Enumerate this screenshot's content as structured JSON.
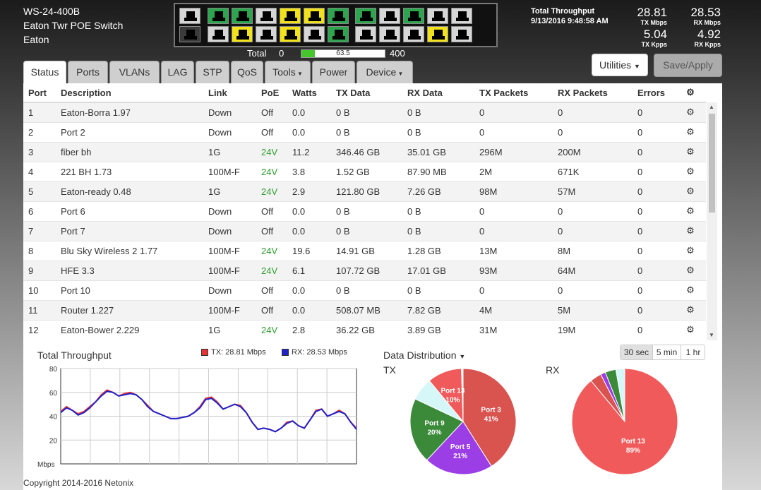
{
  "device": {
    "line1": "WS-24-400B",
    "line2": "Eaton Twr POE Switch",
    "line3": "Eaton"
  },
  "power": {
    "total_label": "Total",
    "min": "0 W",
    "current": "63.5",
    "current_fraction": 0.159,
    "max": "400 W"
  },
  "throughput": {
    "label": "Total Throughput",
    "datetime": "9/13/2016 9:48:58 AM",
    "tx_mbps": "28.81",
    "tx_mbps_label": "TX Mbps",
    "rx_mbps": "28.53",
    "rx_mbps_label": "RX Mbps",
    "tx_kpps": "5.04",
    "tx_kpps_label": "TX Kpps",
    "rx_kpps": "4.92",
    "rx_kpps_label": "RX Kpps"
  },
  "ports_panel": {
    "top": [
      "gray",
      "green",
      "green",
      "gray",
      "yellow",
      "yellow",
      "green",
      "green",
      "gray",
      "green",
      "gray",
      "gray"
    ],
    "bottom": [
      "dark",
      "gray",
      "yellow",
      "gray",
      "yellow",
      "gray",
      "green",
      "gray",
      "gray",
      "gray",
      "yellow",
      "gray"
    ]
  },
  "buttons": {
    "utilities": "Utilities",
    "save": "Save/Apply"
  },
  "tabs": [
    {
      "label": "Status",
      "active": true
    },
    {
      "label": "Ports"
    },
    {
      "label": "VLANs"
    },
    {
      "label": "LAG"
    },
    {
      "label": "STP"
    },
    {
      "label": "QoS"
    },
    {
      "label": "Tools",
      "dropdown": true
    },
    {
      "label": "Power"
    },
    {
      "label": "Device",
      "dropdown": true
    }
  ],
  "table": {
    "headers": [
      "Port",
      "Description",
      "Link",
      "PoE",
      "Watts",
      "TX Data",
      "RX Data",
      "TX Packets",
      "RX Packets",
      "Errors"
    ],
    "rows": [
      [
        "1",
        "Eaton-Borra 1.97",
        "Down",
        "Off",
        "0.0",
        "0 B",
        "0 B",
        "0",
        "0",
        "0"
      ],
      [
        "2",
        "Port 2",
        "Down",
        "Off",
        "0.0",
        "0 B",
        "0 B",
        "0",
        "0",
        "0"
      ],
      [
        "3",
        "fiber bh",
        "1G",
        "24V",
        "11.2",
        "346.46 GB",
        "35.01 GB",
        "296M",
        "200M",
        "0"
      ],
      [
        "4",
        "221 BH 1.73",
        "100M-F",
        "24V",
        "3.8",
        "1.52 GB",
        "87.90 MB",
        "2M",
        "671K",
        "0"
      ],
      [
        "5",
        "Eaton-ready 0.48",
        "1G",
        "24V",
        "2.9",
        "121.80 GB",
        "7.26 GB",
        "98M",
        "57M",
        "0"
      ],
      [
        "6",
        "Port 6",
        "Down",
        "Off",
        "0.0",
        "0 B",
        "0 B",
        "0",
        "0",
        "0"
      ],
      [
        "7",
        "Port 7",
        "Down",
        "Off",
        "0.0",
        "0 B",
        "0 B",
        "0",
        "0",
        "0"
      ],
      [
        "8",
        "Blu Sky Wireless 2 1.77",
        "100M-F",
        "24V",
        "19.6",
        "14.91 GB",
        "1.28 GB",
        "13M",
        "8M",
        "0"
      ],
      [
        "9",
        "HFE 3.3",
        "100M-F",
        "24V",
        "6.1",
        "107.72 GB",
        "17.01 GB",
        "93M",
        "64M",
        "0"
      ],
      [
        "10",
        "Port 10",
        "Down",
        "Off",
        "0.0",
        "0 B",
        "0 B",
        "0",
        "0",
        "0"
      ],
      [
        "11",
        "Router 1.227",
        "100M-F",
        "Off",
        "0.0",
        "508.07 MB",
        "7.82 GB",
        "4M",
        "5M",
        "0"
      ],
      [
        "12",
        "Eaton-Bower 2.229",
        "1G",
        "24V",
        "2.8",
        "36.22 GB",
        "3.89 GB",
        "31M",
        "19M",
        "0"
      ]
    ]
  },
  "bottom": {
    "chart_title": "Total Throughput",
    "legend_tx": "TX: 28.81 Mbps",
    "legend_rx": "RX: 28.53 Mbps",
    "dd_title": "Data Distribution",
    "tx_label": "TX",
    "rx_label": "RX",
    "time_buttons": [
      "30 sec",
      "5 min",
      "1 hr"
    ]
  },
  "footer": "Copyright 2014-2016 Netonix",
  "colors": {
    "tx": "#e53333",
    "rx": "#2222cc"
  },
  "chart_data": [
    {
      "type": "line",
      "title": "Total Throughput",
      "ylabel": "Mbps",
      "ylim": [
        0,
        80
      ],
      "yticks": [
        20,
        40,
        60,
        80
      ],
      "grid": true,
      "legend": "top-right",
      "series": [
        {
          "name": "TX: 28.81 Mbps",
          "color": "#e53333",
          "values": [
            44,
            48,
            45,
            42,
            44,
            48,
            52,
            58,
            62,
            60,
            57,
            59,
            60,
            58,
            54,
            49,
            44,
            42,
            40,
            38,
            38,
            39,
            40,
            43,
            48,
            55,
            56,
            52,
            46,
            48,
            50,
            49,
            43,
            35,
            29,
            30,
            29,
            27,
            30,
            35,
            36,
            32,
            30,
            37,
            45,
            46,
            40,
            42,
            45,
            42,
            35,
            30
          ]
        },
        {
          "name": "RX: 28.53 Mbps",
          "color": "#2222cc",
          "values": [
            43,
            47,
            45,
            41,
            43,
            47,
            52,
            57,
            61,
            60,
            57,
            58,
            59,
            58,
            54,
            48,
            44,
            42,
            40,
            38,
            38,
            39,
            40,
            43,
            47,
            54,
            55,
            51,
            46,
            48,
            50,
            48,
            43,
            35,
            29,
            30,
            29,
            27,
            30,
            34,
            36,
            32,
            30,
            37,
            44,
            46,
            40,
            42,
            44,
            42,
            35,
            29
          ]
        }
      ]
    },
    {
      "type": "pie",
      "title": "TX",
      "slices": [
        {
          "label": "Port 3",
          "pct_label": "41%",
          "value": 41,
          "color": "#d9534f"
        },
        {
          "label": "Port 5",
          "pct_label": "21%",
          "value": 21,
          "color": "#9b3ee6"
        },
        {
          "label": "Port 9",
          "pct_label": "20%",
          "value": 20,
          "color": "#3a8a3a"
        },
        {
          "label": "",
          "pct_label": "",
          "value": 7,
          "color": "#d6f7f7"
        },
        {
          "label": "Port 13",
          "pct_label": "10%",
          "value": 10.5,
          "color": "#f05a5a"
        },
        {
          "label": "",
          "pct_label": "",
          "value": 0.5,
          "color": "#ffffff"
        }
      ]
    },
    {
      "type": "pie",
      "title": "RX",
      "slices": [
        {
          "label": "Port 13",
          "pct_label": "89%",
          "value": 89,
          "color": "#f05a5a"
        },
        {
          "label": "",
          "pct_label": "",
          "value": 3.5,
          "color": "#d9534f"
        },
        {
          "label": "",
          "pct_label": "",
          "value": 1.5,
          "color": "#9b3ee6"
        },
        {
          "label": "",
          "pct_label": "",
          "value": 3.3,
          "color": "#3a8a3a"
        },
        {
          "label": "",
          "pct_label": "",
          "value": 2.7,
          "color": "#d6f7f7"
        }
      ]
    }
  ]
}
